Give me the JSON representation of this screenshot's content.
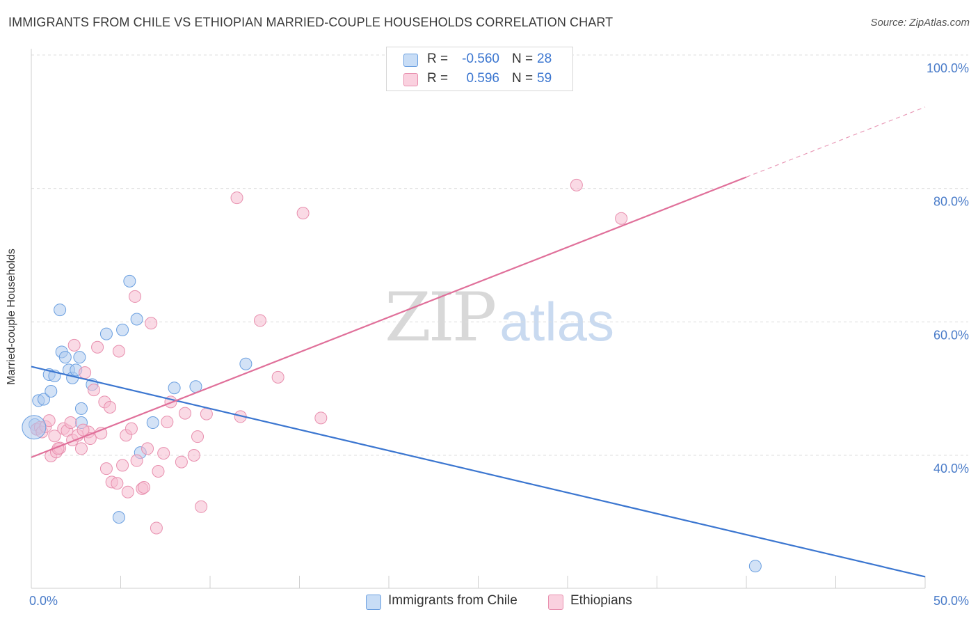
{
  "header": {
    "title": "IMMIGRANTS FROM CHILE VS ETHIOPIAN MARRIED-COUPLE HOUSEHOLDS CORRELATION CHART",
    "source": "Source: ZipAtlas.com"
  },
  "watermark": {
    "zip": "ZIP",
    "atlas": "atlas"
  },
  "legend": {
    "rows": [
      {
        "r_label": "R =",
        "r_value": "-0.560",
        "n_label": "N =",
        "n_value": "28",
        "color": "#aecbef"
      },
      {
        "r_label": "R =",
        "r_value": "0.596",
        "n_label": "N =",
        "n_value": "59",
        "color": "#f5bcd0"
      }
    ]
  },
  "bottom_legend": {
    "items": [
      {
        "label": "Immigrants from Chile",
        "color": "#aecbef"
      },
      {
        "label": "Ethiopians",
        "color": "#f5bcd0"
      }
    ]
  },
  "chart_data": {
    "type": "scatter",
    "title": "IMMIGRANTS FROM CHILE VS ETHIOPIAN MARRIED-COUPLE HOUSEHOLDS CORRELATION CHART",
    "xlabel": "",
    "ylabel": "Married-couple Households",
    "xlim": [
      0,
      50
    ],
    "ylim": [
      20,
      104
    ],
    "x_tick_labels": [
      {
        "value": 0,
        "label": "0.0%"
      },
      {
        "value": 50,
        "label": "50.0%"
      }
    ],
    "y_tick_labels": [
      {
        "value": 40,
        "label": "40.0%"
      },
      {
        "value": 60,
        "label": "60.0%"
      },
      {
        "value": 80,
        "label": "80.0%"
      },
      {
        "value": 100,
        "label": "100.0%"
      }
    ],
    "grid": true,
    "series": [
      {
        "name": "Immigrants from Chile",
        "color": "#aecbef",
        "stroke": "#6a9fe0",
        "line_color": "#3b76d0",
        "trend": {
          "x0": 0,
          "y0": 53.3,
          "x1": 50,
          "y1": 21.8,
          "dashed_from": null
        },
        "points": [
          [
            0.2,
            44.6
          ],
          [
            0.4,
            48.2
          ],
          [
            0.7,
            48.4
          ],
          [
            1.1,
            49.6
          ],
          [
            1.0,
            52.1
          ],
          [
            1.3,
            51.9
          ],
          [
            1.6,
            61.8
          ],
          [
            1.7,
            55.5
          ],
          [
            1.9,
            54.7
          ],
          [
            2.1,
            52.8
          ],
          [
            2.3,
            51.6
          ],
          [
            2.5,
            52.8
          ],
          [
            2.7,
            54.7
          ],
          [
            2.8,
            47.0
          ],
          [
            2.8,
            44.9
          ],
          [
            3.4,
            50.6
          ],
          [
            4.2,
            58.2
          ],
          [
            4.9,
            30.7
          ],
          [
            5.1,
            58.8
          ],
          [
            5.5,
            66.1
          ],
          [
            5.9,
            60.4
          ],
          [
            6.1,
            40.4
          ],
          [
            6.8,
            44.9
          ],
          [
            8.0,
            50.1
          ],
          [
            9.2,
            50.3
          ],
          [
            12.0,
            53.7
          ],
          [
            40.5,
            23.4
          ],
          [
            0.3,
            43.9
          ]
        ]
      },
      {
        "name": "Ethiopians",
        "color": "#f5bcd0",
        "stroke": "#e88fae",
        "line_color": "#e0709a",
        "trend": {
          "x0": 0,
          "y0": 39.7,
          "x1": 50,
          "y1": 92.2,
          "dashed_from": 40.0
        },
        "points": [
          [
            0.3,
            43.9
          ],
          [
            0.5,
            44.2
          ],
          [
            0.6,
            43.5
          ],
          [
            0.8,
            44.3
          ],
          [
            1.0,
            45.2
          ],
          [
            1.1,
            39.9
          ],
          [
            1.3,
            42.9
          ],
          [
            1.4,
            40.5
          ],
          [
            1.6,
            41.1
          ],
          [
            1.8,
            44.0
          ],
          [
            2.0,
            43.7
          ],
          [
            2.2,
            44.9
          ],
          [
            2.3,
            42.3
          ],
          [
            2.4,
            56.5
          ],
          [
            2.6,
            43.0
          ],
          [
            2.8,
            41.0
          ],
          [
            3.0,
            52.4
          ],
          [
            3.2,
            43.5
          ],
          [
            3.3,
            42.5
          ],
          [
            3.5,
            49.8
          ],
          [
            3.7,
            56.2
          ],
          [
            3.9,
            43.3
          ],
          [
            4.1,
            48.0
          ],
          [
            4.2,
            38.0
          ],
          [
            4.4,
            47.2
          ],
          [
            4.5,
            36.0
          ],
          [
            4.8,
            35.8
          ],
          [
            4.9,
            55.6
          ],
          [
            5.1,
            38.5
          ],
          [
            5.3,
            43.0
          ],
          [
            5.4,
            34.5
          ],
          [
            5.6,
            44.0
          ],
          [
            5.8,
            63.8
          ],
          [
            5.9,
            39.2
          ],
          [
            6.2,
            35.0
          ],
          [
            6.3,
            35.2
          ],
          [
            6.5,
            41.0
          ],
          [
            6.7,
            59.8
          ],
          [
            7.0,
            29.1
          ],
          [
            7.1,
            37.6
          ],
          [
            7.4,
            40.3
          ],
          [
            7.6,
            45.0
          ],
          [
            7.8,
            48.0
          ],
          [
            8.4,
            39.0
          ],
          [
            8.6,
            46.3
          ],
          [
            9.1,
            40.0
          ],
          [
            9.3,
            42.8
          ],
          [
            9.5,
            32.3
          ],
          [
            9.8,
            46.2
          ],
          [
            11.5,
            78.6
          ],
          [
            11.7,
            45.8
          ],
          [
            12.8,
            60.2
          ],
          [
            13.8,
            51.7
          ],
          [
            15.2,
            76.3
          ],
          [
            16.2,
            45.6
          ],
          [
            30.5,
            80.5
          ],
          [
            33.0,
            75.5
          ],
          [
            1.5,
            41.0
          ],
          [
            2.9,
            43.8
          ]
        ]
      }
    ]
  }
}
